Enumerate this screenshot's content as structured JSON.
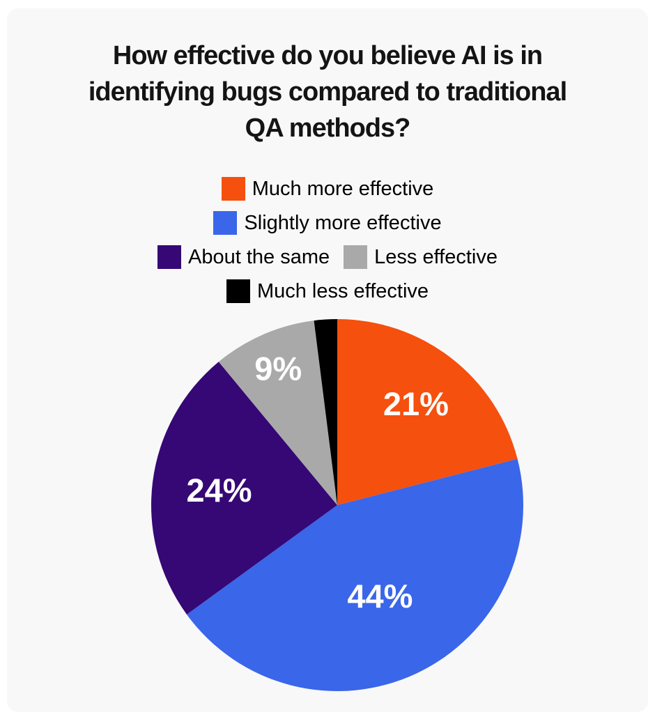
{
  "page": {
    "background": "#FFFFFF",
    "card_background": "#F8F8F8"
  },
  "header": {
    "title": "How effective do you believe AI is in identifying bugs compared to traditional QA methods?",
    "title_lines": [
      "How effective do you believe AI is in",
      "identifying bugs compared to traditional",
      "QA methods?"
    ],
    "title_color": "#141414"
  },
  "legend": {
    "items": [
      {
        "label": "Much more effective"
      },
      {
        "label": "Slightly more effective"
      },
      {
        "label": "About the same"
      },
      {
        "label": "Less effective"
      },
      {
        "label": "Much less effective"
      }
    ]
  },
  "chart_data": {
    "type": "pie",
    "title": "How effective do you believe AI is in identifying bugs compared to traditional QA methods?",
    "categories": [
      "Much more effective",
      "Slightly more effective",
      "About the same",
      "Less effective",
      "Much less effective"
    ],
    "values": [
      21,
      44,
      24,
      9,
      2
    ],
    "slice_labels": [
      "21%",
      "44%",
      "24%",
      "9%",
      ""
    ],
    "colors": [
      "#F5500D",
      "#3A66E9",
      "#350875",
      "#A9A9A9",
      "#000000"
    ],
    "value_label_color": "#FFFFFF",
    "start_angle_deg": 0,
    "direction": "clockwise",
    "legend_position": "top-center",
    "grid": false
  }
}
